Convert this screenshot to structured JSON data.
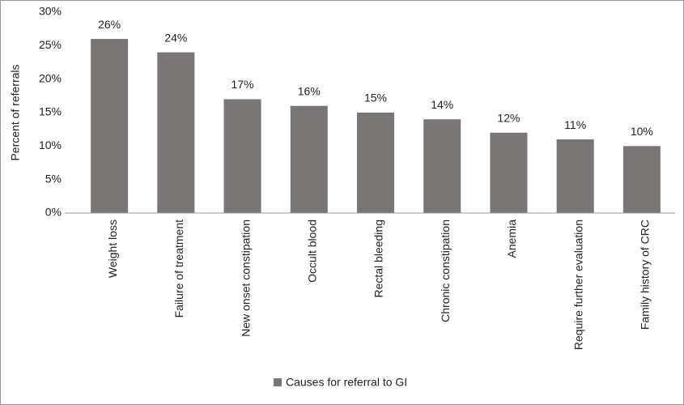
{
  "chart_data": {
    "type": "bar",
    "y_label": "Percent of referrals",
    "categories": [
      "Weight loss",
      "Failure of treatment",
      "New onset constipation",
      "Occult blood",
      "Rectal bleeding",
      "Chronic constipation",
      "Anemia",
      "Require further evaluation",
      "Family history of CRC"
    ],
    "series": [
      {
        "name": "Causes for referral to GI",
        "color": "#7a7676",
        "values": [
          26,
          24,
          17,
          16,
          15,
          14,
          12,
          11,
          10
        ],
        "value_labels": [
          "26%",
          "24%",
          "17%",
          "16%",
          "15%",
          "14%",
          "12%",
          "11%",
          "10%"
        ]
      }
    ],
    "ylim": [
      0,
      30
    ],
    "yticks": [
      {
        "value": 0,
        "label": "0%"
      },
      {
        "value": 5,
        "label": "5%"
      },
      {
        "value": 10,
        "label": "10%"
      },
      {
        "value": 15,
        "label": "15%"
      },
      {
        "value": 20,
        "label": "20%"
      },
      {
        "value": 25,
        "label": "25%"
      },
      {
        "value": 30,
        "label": "30%"
      }
    ],
    "grid": false,
    "legend": "bottom"
  }
}
